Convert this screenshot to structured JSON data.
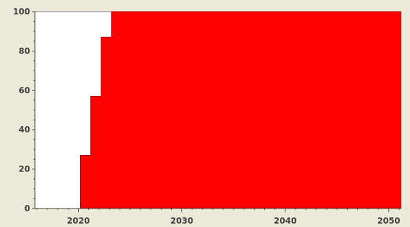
{
  "chart_data": {
    "type": "area",
    "title": "",
    "xlabel": "",
    "ylabel": "",
    "xlim": [
      2015.8,
      2051.2
    ],
    "ylim": [
      0,
      100
    ],
    "x_ticks": [
      2020,
      2030,
      2040,
      2050
    ],
    "y_ticks": [
      0,
      20,
      40,
      60,
      80,
      100
    ],
    "grid": false,
    "step": "post",
    "series": [
      {
        "color": "#ff0000",
        "x": [
          2015.8,
          2020.2,
          2021.2,
          2022.2,
          2023.2,
          2051.2
        ],
        "values": [
          0,
          27,
          57,
          87,
          100,
          100
        ]
      }
    ]
  },
  "colors": {
    "background": "#ece9d8",
    "plot_area": "#ffffff",
    "fill": "#ff0000",
    "axis": "#404040"
  }
}
